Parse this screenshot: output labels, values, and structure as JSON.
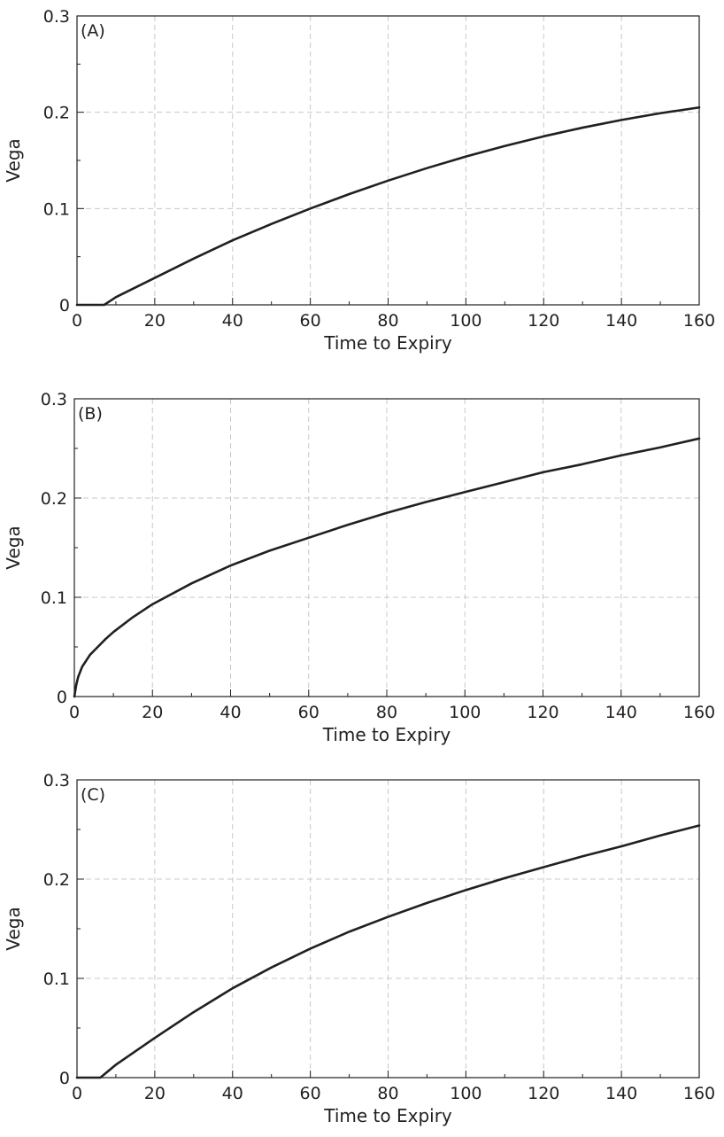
{
  "chart_data": [
    {
      "type": "line",
      "panel_label": "(A)",
      "xlabel": "Time to Expiry",
      "ylabel": "Vega",
      "xlim": [
        0,
        160
      ],
      "ylim": [
        0,
        0.3
      ],
      "xticks": [
        0,
        20,
        40,
        60,
        80,
        100,
        120,
        140,
        160
      ],
      "xtick_labels": [
        "0",
        "20",
        "40",
        "60",
        "80",
        "100",
        "120",
        "140",
        "160"
      ],
      "yticks": [
        0,
        0.1,
        0.2,
        0.3
      ],
      "ytick_labels": [
        "0",
        "0.1",
        "0.2",
        "0.3"
      ],
      "grid": true,
      "series": [
        {
          "x": [
            0,
            7,
            10,
            20,
            30,
            40,
            50,
            60,
            70,
            80,
            90,
            100,
            110,
            120,
            130,
            140,
            150,
            160
          ],
          "y": [
            0,
            0,
            0.008,
            0.028,
            0.048,
            0.067,
            0.084,
            0.1,
            0.115,
            0.129,
            0.142,
            0.154,
            0.165,
            0.175,
            0.184,
            0.192,
            0.199,
            0.205
          ]
        }
      ]
    },
    {
      "type": "line",
      "panel_label": "(B)",
      "xlabel": "Time to Expiry",
      "ylabel": "Vega",
      "xlim": [
        0,
        160
      ],
      "ylim": [
        0,
        0.3
      ],
      "xticks": [
        0,
        20,
        40,
        60,
        80,
        100,
        120,
        140,
        160
      ],
      "xtick_labels": [
        "0",
        "20",
        "40",
        "60",
        "80",
        "100",
        "120",
        "140",
        "160"
      ],
      "yticks": [
        0,
        0.1,
        0.2,
        0.3
      ],
      "ytick_labels": [
        "0",
        "0.1",
        "0.2",
        "0.3"
      ],
      "grid": true,
      "series": [
        {
          "x": [
            0,
            0.5,
            1,
            2,
            4,
            6,
            8,
            10,
            15,
            20,
            30,
            40,
            50,
            60,
            70,
            80,
            90,
            100,
            110,
            120,
            130,
            140,
            150,
            160
          ],
          "y": [
            0,
            0.012,
            0.02,
            0.03,
            0.042,
            0.05,
            0.058,
            0.065,
            0.08,
            0.093,
            0.114,
            0.132,
            0.147,
            0.16,
            0.173,
            0.185,
            0.196,
            0.206,
            0.216,
            0.226,
            0.234,
            0.243,
            0.251,
            0.26
          ]
        }
      ]
    },
    {
      "type": "line",
      "panel_label": "(C)",
      "xlabel": "Time to Expiry",
      "ylabel": "Vega",
      "xlim": [
        0,
        160
      ],
      "ylim": [
        0,
        0.3
      ],
      "xticks": [
        0,
        20,
        40,
        60,
        80,
        100,
        120,
        140,
        160
      ],
      "xtick_labels": [
        "0",
        "20",
        "40",
        "60",
        "80",
        "100",
        "120",
        "140",
        "160"
      ],
      "yticks": [
        0,
        0.1,
        0.2,
        0.3
      ],
      "ytick_labels": [
        "0",
        "0.1",
        "0.2",
        "0.3"
      ],
      "grid": true,
      "series": [
        {
          "x": [
            0,
            6,
            10,
            20,
            30,
            40,
            50,
            60,
            70,
            80,
            90,
            100,
            110,
            120,
            130,
            140,
            150,
            160
          ],
          "y": [
            0,
            0,
            0.013,
            0.04,
            0.066,
            0.09,
            0.111,
            0.13,
            0.147,
            0.162,
            0.176,
            0.189,
            0.201,
            0.212,
            0.223,
            0.233,
            0.244,
            0.254
          ]
        }
      ]
    }
  ]
}
